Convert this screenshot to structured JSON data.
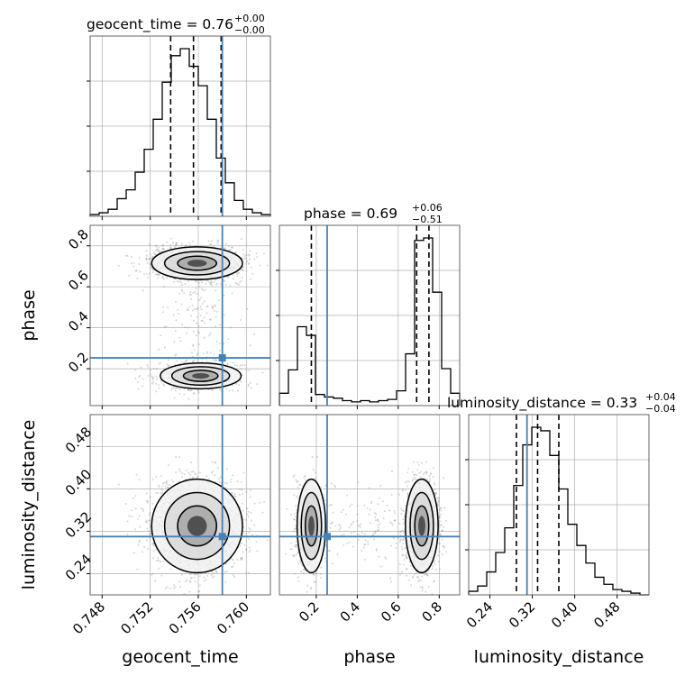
{
  "chart_data": {
    "type": "corner",
    "parameters": [
      "geocent_time",
      "phase",
      "luminosity_distance"
    ],
    "axis_labels": {
      "geocent_time": "geocent_time",
      "phase": "phase",
      "luminosity_distance": "luminosity_distance"
    },
    "ranges": {
      "geocent_time": [
        0.747,
        0.762
      ],
      "phase": [
        0.02,
        0.9
      ],
      "luminosity_distance": [
        0.2,
        0.54
      ]
    },
    "ticks": {
      "geocent_time": [
        "0.748",
        "0.752",
        "0.756",
        "0.760"
      ],
      "phase": [
        "0.2",
        "0.4",
        "0.6",
        "0.8"
      ],
      "luminosity_distance": [
        "0.24",
        "0.32",
        "0.40",
        "0.48"
      ]
    },
    "tick_values": {
      "geocent_time": [
        0.748,
        0.752,
        0.756,
        0.76
      ],
      "phase": [
        0.2,
        0.4,
        0.6,
        0.8
      ],
      "luminosity_distance": [
        0.24,
        0.32,
        0.4,
        0.48
      ]
    },
    "truths": {
      "geocent_time": 0.758,
      "phase": 0.253,
      "luminosity_distance": 0.31
    },
    "quantiles": {
      "geocent_time": [
        0.7537,
        0.7556,
        0.7579
      ],
      "phase": [
        0.176,
        0.69,
        0.75
      ],
      "luminosity_distance": [
        0.29,
        0.33,
        0.37
      ]
    },
    "titles": {
      "geocent_time": {
        "text": "geocent_time = 0.76",
        "plus": "+0.00",
        "minus": "−0.00"
      },
      "phase": {
        "text": "phase = 0.69",
        "plus": "+0.06",
        "minus": "−0.51"
      },
      "luminosity_distance": {
        "text": "luminosity_distance = 0.33",
        "plus": "+0.04",
        "minus": "−0.04"
      }
    },
    "histograms": {
      "geocent_time": {
        "bin_start": 0.747,
        "bin_width": 0.00075,
        "counts": [
          1,
          2,
          4,
          10,
          15,
          25,
          38,
          55,
          76,
          91,
          95,
          85,
          74,
          55,
          33,
          19,
          9,
          4,
          2,
          1
        ]
      },
      "phase": {
        "bin_start": 0.02,
        "bin_width": 0.044,
        "counts": [
          10,
          29,
          64,
          57,
          9,
          7,
          6,
          4,
          3,
          4,
          3,
          4,
          5,
          12,
          42,
          134,
          136,
          92,
          30,
          10
        ]
      },
      "luminosity_distance": {
        "bin_start": 0.2,
        "bin_width": 0.017,
        "counts": [
          2,
          5,
          13,
          24,
          38,
          62,
          85,
          95,
          93,
          79,
          60,
          40,
          28,
          18,
          10,
          6,
          3,
          2,
          1,
          0
        ]
      }
    },
    "colors": {
      "truth": "#4682b4",
      "hist": "#000000",
      "points": "#888888",
      "grid": "#b0b0b0"
    },
    "grid": true
  }
}
